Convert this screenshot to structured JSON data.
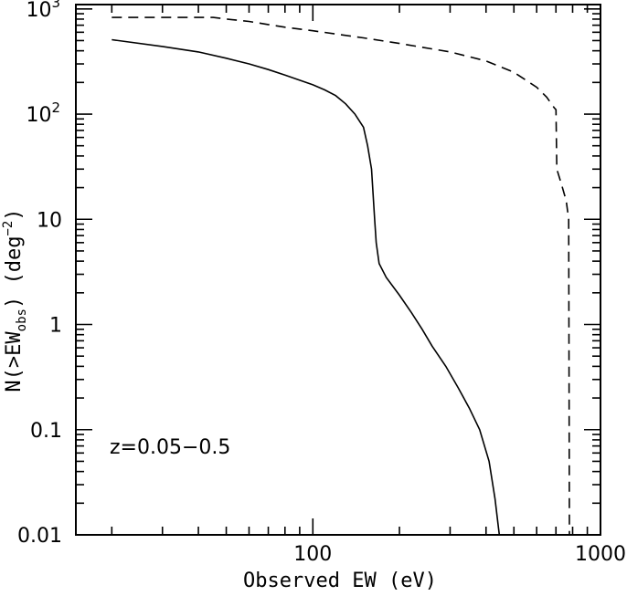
{
  "chart_data": {
    "type": "line",
    "title": "",
    "xlabel": "Observed EW (eV)",
    "ylabel": {
      "prefix": "N(>EW",
      "subscript": "obs",
      "suffix": ")  (deg",
      "superscript": "−2",
      "end": ")"
    },
    "xscale": "log",
    "yscale": "log",
    "xlim": [
      15,
      1000
    ],
    "ylim": [
      0.01,
      1100
    ],
    "grid": false,
    "legend": "none",
    "annotation": "z=0.05−0.5",
    "x_ticks": [
      {
        "value": 100,
        "label": "100"
      },
      {
        "value": 1000,
        "label": "1000"
      }
    ],
    "y_ticks": [
      {
        "value": 1000,
        "base": "10",
        "exp": "3"
      },
      {
        "value": 100,
        "base": "10",
        "exp": "2"
      },
      {
        "value": 10,
        "base": "10",
        "exp": ""
      },
      {
        "value": 1,
        "base": "1",
        "exp": ""
      },
      {
        "value": 0.1,
        "base": "0.1",
        "exp": ""
      },
      {
        "value": 0.01,
        "base": "0.01",
        "exp": ""
      }
    ],
    "series": [
      {
        "style": "solid",
        "points": [
          [
            20,
            510
          ],
          [
            30,
            440
          ],
          [
            40,
            390
          ],
          [
            50,
            340
          ],
          [
            60,
            300
          ],
          [
            70,
            265
          ],
          [
            80,
            235
          ],
          [
            90,
            210
          ],
          [
            100,
            190
          ],
          [
            110,
            170
          ],
          [
            120,
            150
          ],
          [
            130,
            125
          ],
          [
            140,
            100
          ],
          [
            150,
            75
          ],
          [
            155,
            50
          ],
          [
            160,
            30
          ],
          [
            164,
            10
          ],
          [
            166,
            6
          ],
          [
            170,
            3.8
          ],
          [
            180,
            2.8
          ],
          [
            200,
            1.9
          ],
          [
            220,
            1.3
          ],
          [
            240,
            0.9
          ],
          [
            260,
            0.62
          ],
          [
            290,
            0.4
          ],
          [
            320,
            0.25
          ],
          [
            350,
            0.16
          ],
          [
            380,
            0.1
          ],
          [
            410,
            0.05
          ],
          [
            430,
            0.022
          ],
          [
            445,
            0.01
          ]
        ]
      },
      {
        "style": "dashed",
        "points": [
          [
            20,
            830
          ],
          [
            45,
            830
          ],
          [
            50,
            800
          ],
          [
            60,
            760
          ],
          [
            70,
            710
          ],
          [
            80,
            670
          ],
          [
            100,
            620
          ],
          [
            150,
            530
          ],
          [
            200,
            470
          ],
          [
            300,
            390
          ],
          [
            400,
            320
          ],
          [
            500,
            250
          ],
          [
            600,
            180
          ],
          [
            650,
            145
          ],
          [
            690,
            115
          ],
          [
            700,
            110
          ],
          [
            705,
            30
          ],
          [
            730,
            22
          ],
          [
            760,
            15
          ],
          [
            775,
            10
          ],
          [
            780,
            0.01
          ]
        ]
      }
    ]
  }
}
